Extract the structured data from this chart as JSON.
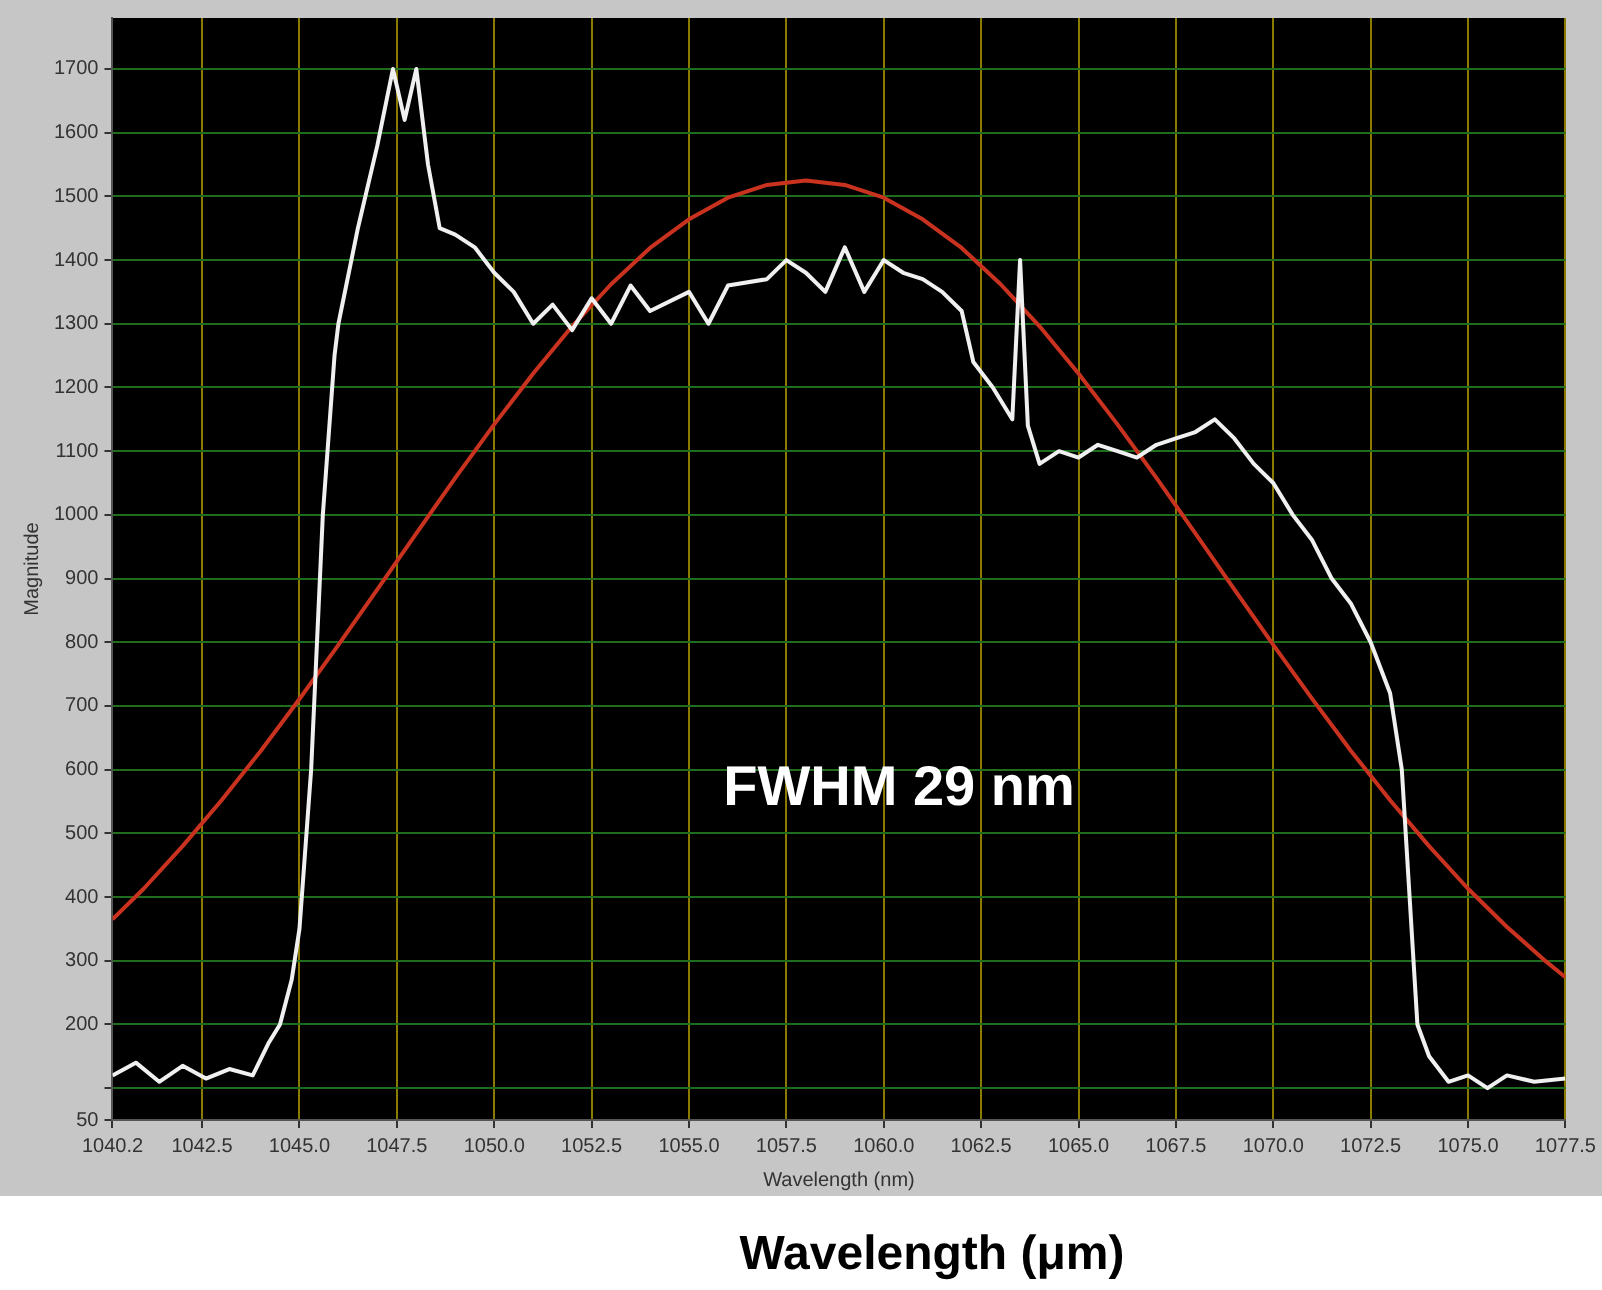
{
  "chart_data": {
    "type": "line",
    "xlabel": "Wavelength (nm)",
    "ylabel": "Magnitude",
    "annotations": [
      "FWHM 29 nm",
      "Wavelength (μm)"
    ],
    "xlim": [
      1040.2,
      1077.5
    ],
    "xticks": [
      {
        "value": 1040.2,
        "label": "1040.2"
      },
      {
        "value": 1042.5,
        "label": "1042.5"
      },
      {
        "value": 1045,
        "label": "1045.0"
      },
      {
        "value": 1047.5,
        "label": "1047.5"
      },
      {
        "value": 1050,
        "label": "1050.0"
      },
      {
        "value": 1052.5,
        "label": "1052.5"
      },
      {
        "value": 1055,
        "label": "1055.0"
      },
      {
        "value": 1057.5,
        "label": "1057.5"
      },
      {
        "value": 1060,
        "label": "1060.0"
      },
      {
        "value": 1062.5,
        "label": "1062.5"
      },
      {
        "value": 1065,
        "label": "1065.0"
      },
      {
        "value": 1067.5,
        "label": "1067.5"
      },
      {
        "value": 1070,
        "label": "1070.0"
      },
      {
        "value": 1072.5,
        "label": "1072.5"
      },
      {
        "value": 1075,
        "label": "1075.0"
      },
      {
        "value": 1077.5,
        "label": "1077.5"
      }
    ],
    "ylim": [
      50,
      1780
    ],
    "yticks": [
      50,
      {
        "value": 100,
        "label": null
      },
      200,
      300,
      400,
      500,
      600,
      700,
      800,
      900,
      1000,
      1100,
      1200,
      1300,
      1400,
      1500,
      1600,
      1700
    ],
    "grid": true,
    "marker": "none",
    "line_style": "solid",
    "series": [
      {
        "color": "#f0f0f0",
        "x": [
          1040.2,
          1040.8,
          1041.4,
          1042,
          1042.6,
          1043.2,
          1043.8,
          1044.2,
          1044.5,
          1044.8,
          1045,
          1045.3,
          1045.6,
          1045.9,
          1046,
          1046.5,
          1047,
          1047.4,
          1047.7,
          1048,
          1048.3,
          1048.6,
          1049,
          1049.5,
          1050,
          1050.5,
          1051,
          1051.5,
          1052,
          1052.5,
          1053,
          1053.5,
          1054,
          1055,
          1055.5,
          1056,
          1057,
          1057.5,
          1058,
          1058.5,
          1059,
          1059.5,
          1060,
          1060.5,
          1061,
          1061.5,
          1062,
          1062.3,
          1062.8,
          1063.3,
          1063.5,
          1063.7,
          1064,
          1064.5,
          1065,
          1065.5,
          1066,
          1066.5,
          1067,
          1067.5,
          1068,
          1068.5,
          1069,
          1069.5,
          1070,
          1070.5,
          1071,
          1071.5,
          1072,
          1072.5,
          1073,
          1073.3,
          1073.5,
          1073.7,
          1074,
          1074.5,
          1075,
          1075.5,
          1076,
          1076.7,
          1077.5
        ],
        "values": [
          120,
          140,
          110,
          135,
          115,
          130,
          120,
          170,
          200,
          270,
          350,
          600,
          1000,
          1250,
          1300,
          1450,
          1580,
          1700,
          1620,
          1700,
          1550,
          1450,
          1440,
          1420,
          1380,
          1350,
          1300,
          1330,
          1290,
          1340,
          1300,
          1360,
          1320,
          1350,
          1300,
          1360,
          1370,
          1400,
          1380,
          1350,
          1420,
          1350,
          1400,
          1380,
          1370,
          1350,
          1320,
          1240,
          1200,
          1150,
          1400,
          1140,
          1080,
          1100,
          1090,
          1110,
          1100,
          1090,
          1110,
          1120,
          1130,
          1150,
          1120,
          1080,
          1050,
          1000,
          960,
          900,
          860,
          800,
          720,
          600,
          400,
          200,
          150,
          110,
          120,
          100,
          120,
          110,
          115
        ]
      },
      {
        "color": "#c8321e",
        "x": [
          1040.2,
          1041,
          1042,
          1043,
          1044,
          1045,
          1046,
          1047,
          1048,
          1049,
          1050,
          1051,
          1052,
          1053,
          1054,
          1055,
          1056,
          1057,
          1058,
          1059,
          1060,
          1061,
          1062,
          1063,
          1064,
          1065,
          1066,
          1067,
          1068,
          1069,
          1070,
          1071,
          1072,
          1073,
          1074,
          1075,
          1076,
          1077,
          1077.5
        ],
        "values": [
          365,
          413,
          480,
          552,
          629,
          711,
          796,
          883,
          971,
          1058,
          1142,
          1222,
          1296,
          1362,
          1419,
          1464,
          1498,
          1518,
          1525,
          1518,
          1498,
          1464,
          1419,
          1362,
          1296,
          1222,
          1142,
          1058,
          971,
          883,
          796,
          711,
          629,
          552,
          480,
          413,
          353,
          299,
          274
        ]
      }
    ]
  }
}
